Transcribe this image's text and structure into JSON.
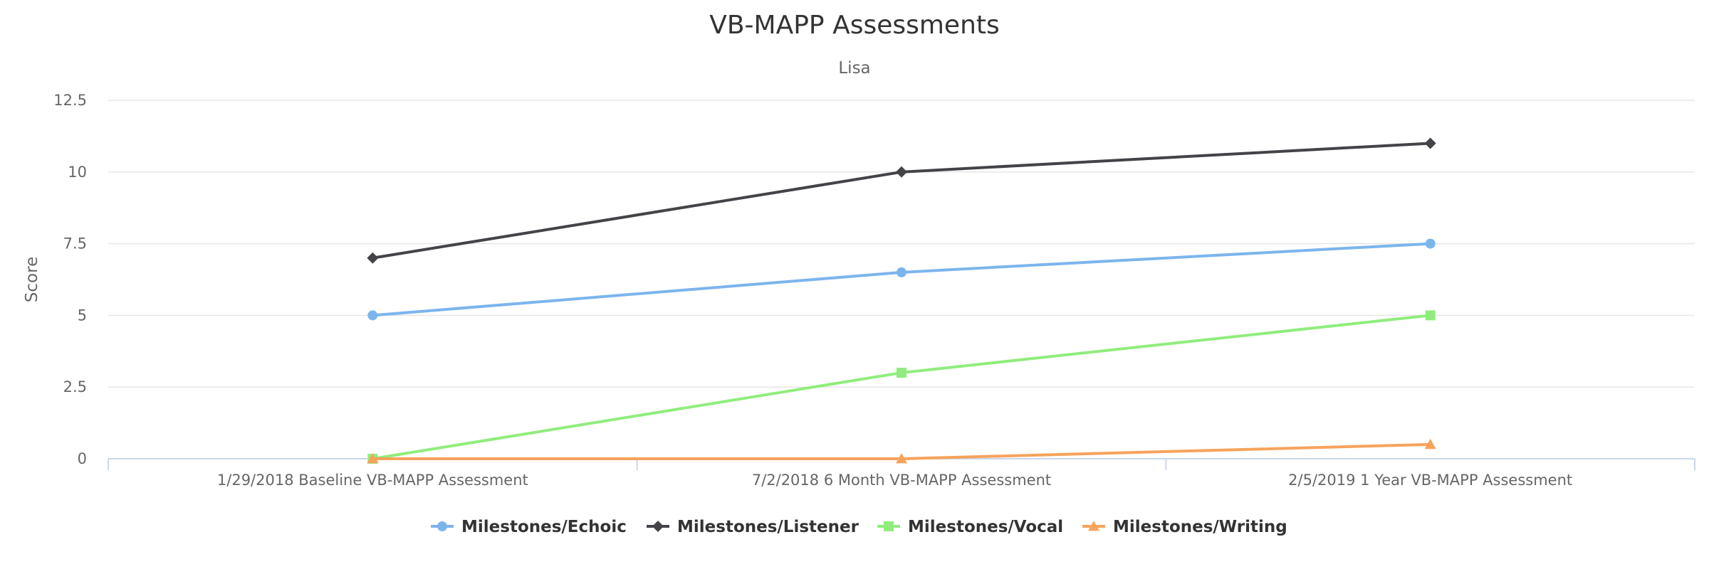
{
  "chart_data": {
    "type": "line",
    "title": "VB-MAPP Assessments",
    "subtitle": "Lisa",
    "xlabel": "",
    "ylabel": "Score",
    "ylim": [
      0,
      12.5
    ],
    "yticks": [
      "0",
      "2.5",
      "5",
      "7.5",
      "10",
      "12.5"
    ],
    "grid": true,
    "legend_position": "bottom-center",
    "categories": [
      "1/29/2018 Baseline VB-MAPP Assessment",
      "7/2/2018 6 Month VB-MAPP Assessment",
      "2/5/2019 1 Year VB-MAPP Assessment"
    ],
    "series": [
      {
        "name": "Milestones/Echoic",
        "values": [
          5,
          6.5,
          7.5
        ],
        "color": "#7cb5ec",
        "marker": "circle"
      },
      {
        "name": "Milestones/Listener",
        "values": [
          7,
          10,
          11
        ],
        "color": "#434348",
        "marker": "diamond"
      },
      {
        "name": "Milestones/Vocal",
        "values": [
          0,
          3,
          5
        ],
        "color": "#90ed7d",
        "marker": "square"
      },
      {
        "name": "Milestones/Writing",
        "values": [
          0,
          0,
          0.5
        ],
        "color": "#f7a35c",
        "marker": "triangle"
      }
    ]
  }
}
